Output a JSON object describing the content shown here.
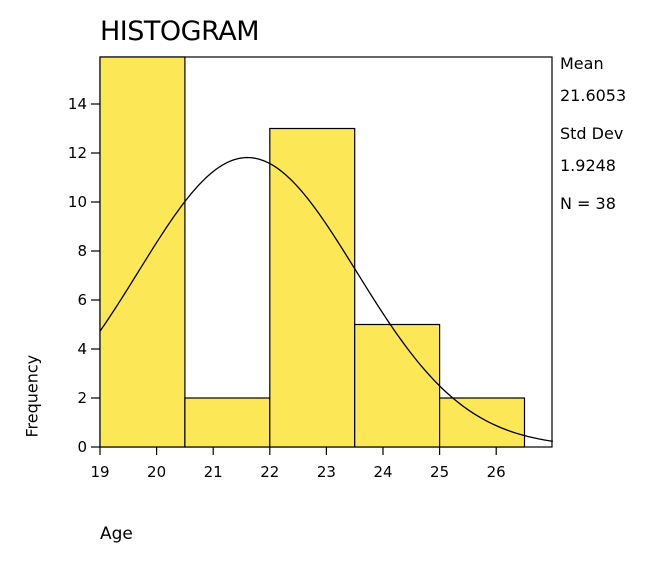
{
  "chart_data": {
    "type": "bar",
    "title": "HISTOGRAM",
    "xlabel": "Age",
    "ylabel": "Frequency",
    "bins": [
      {
        "start": 19.0,
        "end": 20.5,
        "count": 16
      },
      {
        "start": 20.5,
        "end": 22.0,
        "count": 2
      },
      {
        "start": 22.0,
        "end": 23.5,
        "count": 13
      },
      {
        "start": 23.5,
        "end": 25.0,
        "count": 5
      },
      {
        "start": 25.0,
        "end": 26.5,
        "count": 2
      }
    ],
    "xlim": [
      19,
      27
    ],
    "ylim": [
      0,
      16
    ],
    "x_ticks": [
      "19",
      "20",
      "21",
      "22",
      "23",
      "24",
      "25",
      "26"
    ],
    "y_ticks": [
      "0",
      "2",
      "4",
      "6",
      "8",
      "10",
      "12",
      "14"
    ],
    "normal_curve": {
      "mean": 21.6053,
      "std": 1.9248,
      "n": 38
    },
    "bar_color": "#fce857",
    "stats": {
      "mean_label": "Mean",
      "mean_value": "21.6053",
      "std_label": "Std Dev",
      "std_value": "1.9248",
      "n_label": "N = 38"
    }
  }
}
